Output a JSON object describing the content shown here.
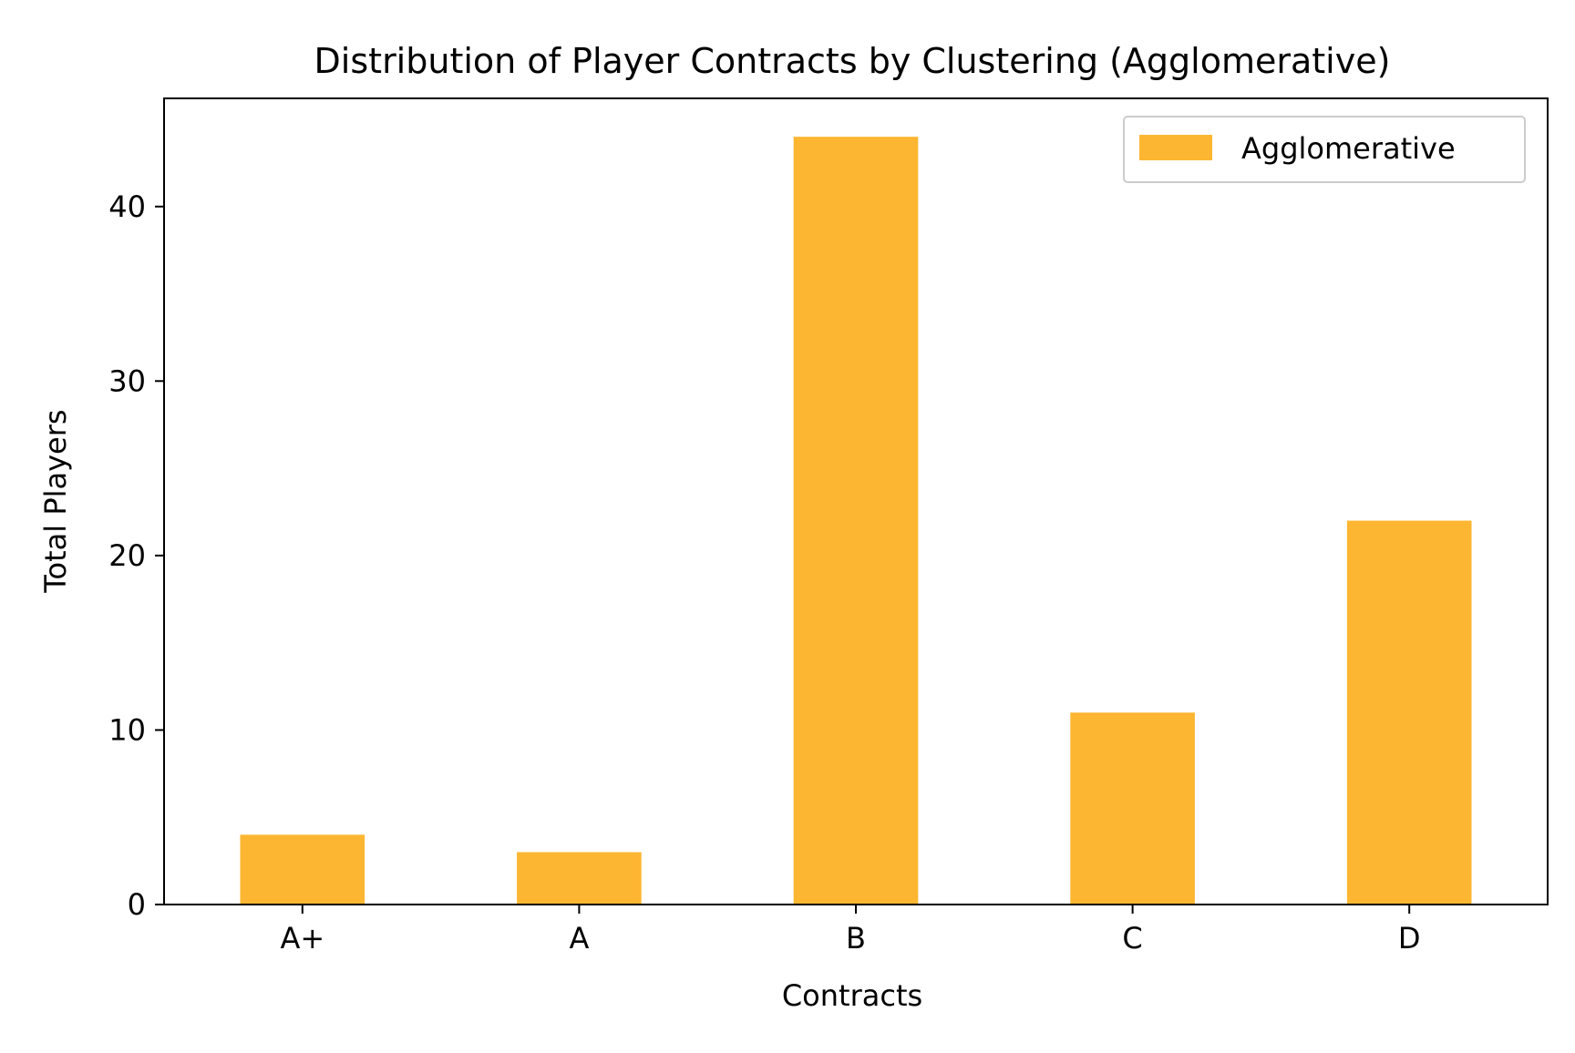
{
  "chart_data": {
    "type": "bar",
    "title": "Distribution of Player Contracts by Clustering (Agglomerative)",
    "xlabel": "Contracts",
    "ylabel": "Total Players",
    "categories": [
      "A+",
      "A",
      "B",
      "C",
      "D"
    ],
    "series": [
      {
        "name": "Agglomerative",
        "values": [
          4,
          3,
          44,
          11,
          22
        ],
        "color": "#FDB632"
      }
    ],
    "ylim": [
      0,
      46.2
    ],
    "yticks": [
      0,
      10,
      20,
      30,
      40
    ],
    "grid": false,
    "legend_position": "top-right"
  }
}
